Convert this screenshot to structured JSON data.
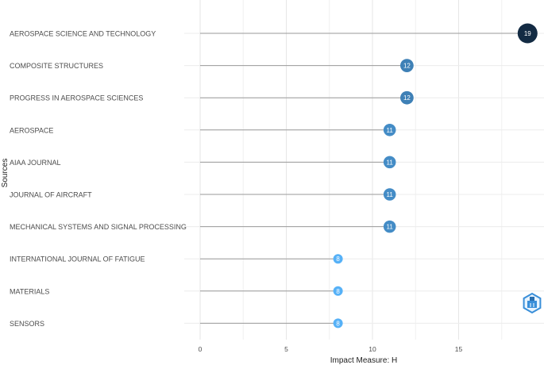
{
  "chart_data": {
    "type": "lollipop",
    "categories": [
      "AEROSPACE SCIENCE AND TECHNOLOGY",
      "COMPOSITE STRUCTURES",
      "PROGRESS IN AEROSPACE SCIENCES",
      "AEROSPACE",
      "AIAA JOURNAL",
      "JOURNAL OF AIRCRAFT",
      "MECHANICAL SYSTEMS AND SIGNAL PROCESSING",
      "INTERNATIONAL JOURNAL OF FATIGUE",
      "MATERIALS",
      "SENSORS"
    ],
    "values": [
      19,
      12,
      12,
      11,
      11,
      11,
      11,
      8,
      8,
      8
    ],
    "xlabel": "Impact Measure: H",
    "ylabel": "Sources",
    "xticks": [
      0,
      5,
      10,
      15
    ],
    "xlim": [
      -0.9,
      20
    ],
    "grid": true,
    "color_low": "#56B1F7",
    "color_high": "#132B43"
  }
}
